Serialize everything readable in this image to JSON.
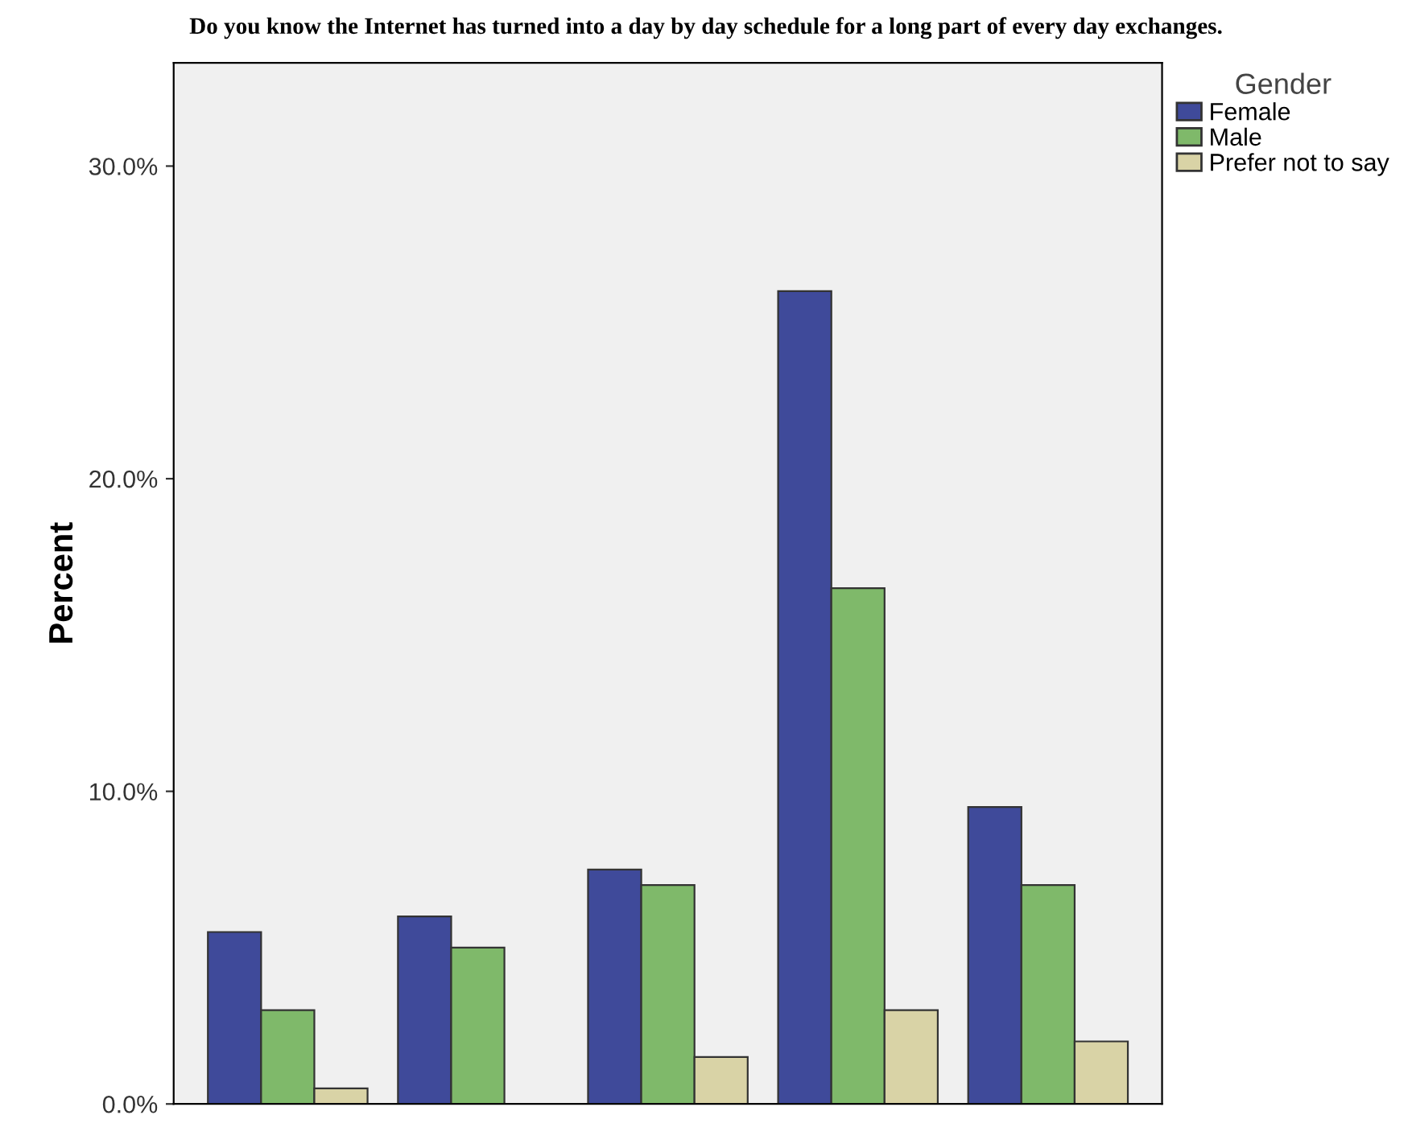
{
  "chart_data": {
    "type": "bar",
    "title": "Do you know the Internet has turned into a day by day schedule for a long part of every day exchanges.",
    "ylabel": "Percent",
    "legend_title": "Gender",
    "categories": [
      null,
      null,
      null,
      null,
      null
    ],
    "series": [
      {
        "name": "Female",
        "color": "#3f4a9a",
        "values": [
          5.5,
          6.0,
          7.5,
          26.0,
          9.5
        ]
      },
      {
        "name": "Male",
        "color": "#7fb96a",
        "values": [
          3.0,
          5.0,
          7.0,
          16.5,
          7.0
        ]
      },
      {
        "name": "Prefer not to say",
        "color": "#d9d3a6",
        "values": [
          0.5,
          null,
          1.5,
          3.0,
          2.0
        ]
      }
    ],
    "ylim": [
      0,
      33.3
    ],
    "yticks": [
      {
        "value": 0,
        "label": "0.0%"
      },
      {
        "value": 10,
        "label": "10.0%"
      },
      {
        "value": 20,
        "label": "20.0%"
      },
      {
        "value": 30,
        "label": "30.0%"
      }
    ],
    "tick_labels": "y",
    "grid": false,
    "legend": "top right"
  }
}
